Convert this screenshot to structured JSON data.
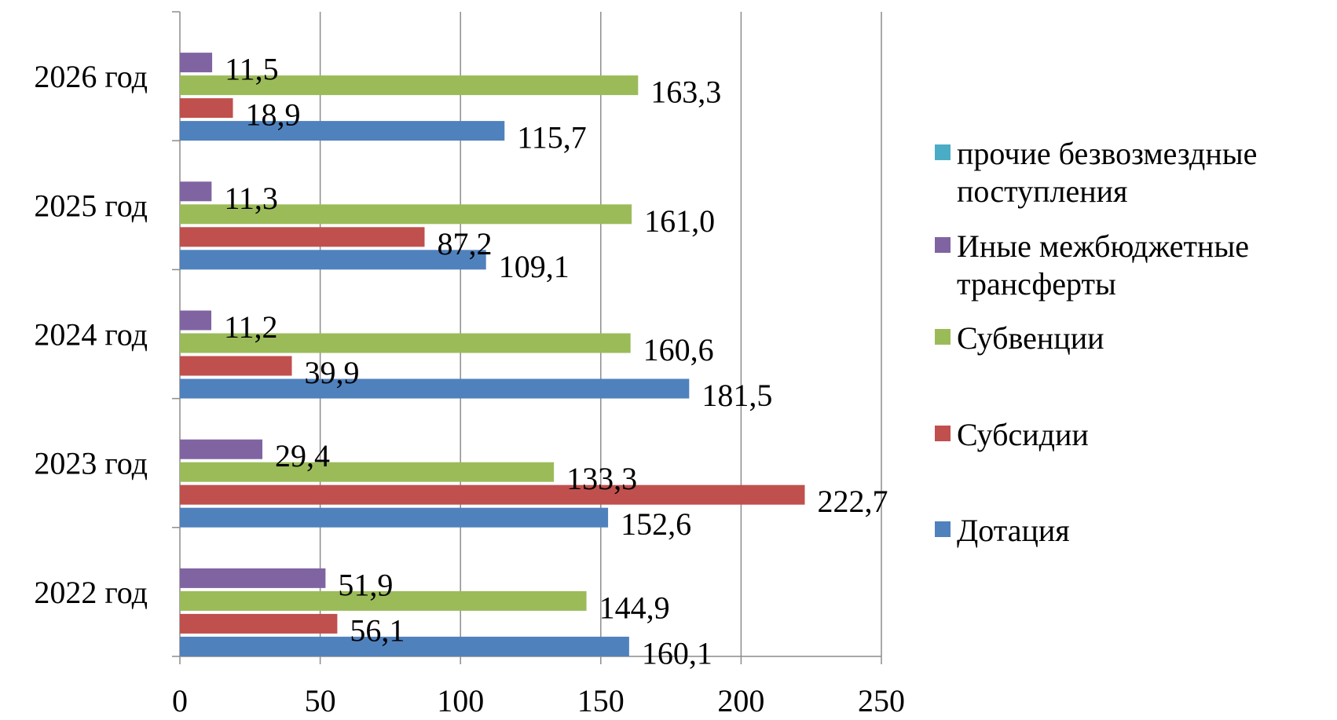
{
  "chart_data": {
    "type": "bar",
    "orientation": "horizontal",
    "categories": [
      "2022 год",
      "2023 год",
      "2024 год",
      "2025 год",
      "2026 год"
    ],
    "series": [
      {
        "name": "Дотация",
        "color": "#4F81BD",
        "values": [
          160.1,
          152.6,
          181.5,
          109.1,
          115.7
        ],
        "labels": [
          "160,1",
          "152,6",
          "181,5",
          "109,1",
          "115,7"
        ]
      },
      {
        "name": "Субсидии",
        "color": "#C0504D",
        "values": [
          56.1,
          222.7,
          39.9,
          87.2,
          18.9
        ],
        "labels": [
          "56,1",
          "222,7",
          "39,9",
          "87,2",
          "18,9"
        ]
      },
      {
        "name": "Субвенции",
        "color": "#9BBB59",
        "values": [
          144.9,
          133.3,
          160.6,
          161.0,
          163.3
        ],
        "labels": [
          "144,9",
          "133,3",
          "160,6",
          "161,0",
          "163,3"
        ]
      },
      {
        "name": "Иные межбюджетные трансферты",
        "color": "#8064A2",
        "values": [
          51.9,
          29.4,
          11.2,
          11.3,
          11.5
        ],
        "labels": [
          "51,9",
          "29,4",
          "11,2",
          "11,3",
          "11,5"
        ]
      },
      {
        "name": "прочие безвозмездные поступления",
        "color": "#4BACC6",
        "values": [
          0,
          0,
          0,
          0,
          0
        ],
        "labels": [
          "",
          "",
          "",
          "",
          ""
        ]
      }
    ],
    "xlim": [
      0,
      250
    ],
    "xticks": [
      "0",
      "50",
      "100",
      "150",
      "200",
      "250"
    ],
    "grid": true,
    "legend_position": "right",
    "title": "",
    "xlabel": "",
    "ylabel": ""
  },
  "legend": [
    {
      "label": "прочие безвозмездные поступления",
      "color": "#4BACC6"
    },
    {
      "label": "Иные межбюджетные трансферты",
      "color": "#8064A2"
    },
    {
      "label": "Субвенции",
      "color": "#9BBB59"
    },
    {
      "label": "Субсидии",
      "color": "#C0504D"
    },
    {
      "label": "Дотация",
      "color": "#4F81BD"
    }
  ]
}
